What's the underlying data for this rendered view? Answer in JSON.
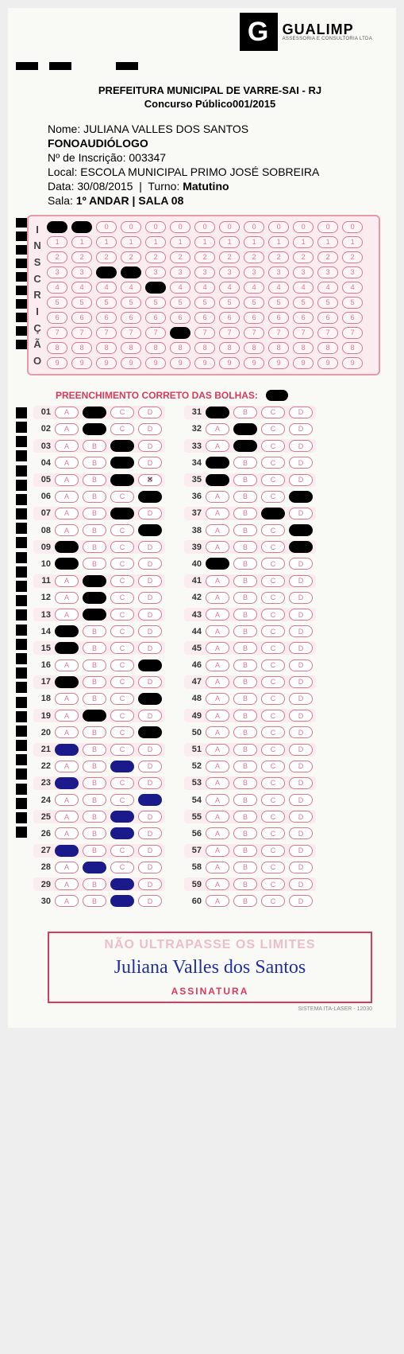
{
  "logo": {
    "brand": "GUALIMP",
    "sub": "ASSESSORIA E CONSULTORIA LTDA",
    "glyph": "G"
  },
  "header": {
    "line1": "PREFEITURA MUNICIPAL DE VARRE-SAI - RJ",
    "line2": "Concurso Público001/2015"
  },
  "candidate": {
    "nome_label": "Nome: ",
    "nome": "JULIANA VALLES DOS SANTOS",
    "cargo": "FONOAUDIÓLOGO",
    "inscricao_label": "Nº de Inscrição: ",
    "inscricao": "003347",
    "local_label": "Local: ",
    "local": "ESCOLA MUNICIPAL PRIMO JOSÉ SOBREIRA",
    "data_label": "Data: ",
    "data": "30/08/2015",
    "turno_label": "Turno: ",
    "turno": "Matutino",
    "sala_label": "Sala: ",
    "sala": "1º ANDAR | SALA 08"
  },
  "inscricao_grid": {
    "label": "INSCRIÇÃO",
    "rows": 10,
    "cols": 13,
    "digits": [
      "0",
      "1",
      "2",
      "3",
      "4",
      "5",
      "6",
      "7",
      "8",
      "9"
    ],
    "filled": [
      [
        0,
        0,
        1
      ],
      [
        0,
        1,
        1
      ],
      [
        3,
        2,
        1
      ],
      [
        3,
        3,
        1
      ],
      [
        4,
        4,
        1
      ],
      [
        7,
        5,
        1
      ]
    ]
  },
  "correct_label": "PREENCHIMENTO CORRETO DAS BOLHAS:",
  "options": [
    "A",
    "B",
    "C",
    "D"
  ],
  "answers": [
    {
      "q": 1,
      "f": [
        "B"
      ]
    },
    {
      "q": 2,
      "f": [
        "B"
      ]
    },
    {
      "q": 3,
      "f": [
        "C"
      ]
    },
    {
      "q": 4,
      "f": [
        "C"
      ]
    },
    {
      "q": 5,
      "f": [
        "C"
      ],
      "x": [
        "D"
      ]
    },
    {
      "q": 6,
      "f": [
        "D"
      ]
    },
    {
      "q": 7,
      "f": [
        "C"
      ]
    },
    {
      "q": 8,
      "f": [
        "D"
      ]
    },
    {
      "q": 9,
      "f": [
        "A"
      ]
    },
    {
      "q": 10,
      "f": [
        "A"
      ]
    },
    {
      "q": 11,
      "f": [
        "B"
      ]
    },
    {
      "q": 12,
      "f": [
        "B"
      ]
    },
    {
      "q": 13,
      "f": [
        "B"
      ]
    },
    {
      "q": 14,
      "f": [
        "A"
      ]
    },
    {
      "q": 15,
      "f": [
        "A"
      ]
    },
    {
      "q": 16,
      "f": [
        "D"
      ]
    },
    {
      "q": 17,
      "f": [
        "A"
      ]
    },
    {
      "q": 18,
      "f": [
        "D"
      ]
    },
    {
      "q": 19,
      "f": [
        "B"
      ]
    },
    {
      "q": 20,
      "f": [
        "D"
      ]
    },
    {
      "q": 21,
      "f": [
        "A"
      ]
    },
    {
      "q": 22,
      "f": [
        "C"
      ]
    },
    {
      "q": 23,
      "f": [
        "A"
      ]
    },
    {
      "q": 24,
      "f": [
        "D"
      ]
    },
    {
      "q": 25,
      "f": [
        "C"
      ]
    },
    {
      "q": 26,
      "f": [
        "C"
      ]
    },
    {
      "q": 27,
      "f": [
        "A"
      ]
    },
    {
      "q": 28,
      "f": [
        "B"
      ]
    },
    {
      "q": 29,
      "f": [
        "C"
      ]
    },
    {
      "q": 30,
      "f": [
        "C"
      ]
    },
    {
      "q": 31,
      "f": [
        "A"
      ]
    },
    {
      "q": 32,
      "f": [
        "B"
      ]
    },
    {
      "q": 33,
      "f": [
        "B"
      ]
    },
    {
      "q": 34,
      "f": [
        "A"
      ]
    },
    {
      "q": 35,
      "f": [
        "A"
      ]
    },
    {
      "q": 36,
      "f": [
        "D"
      ]
    },
    {
      "q": 37,
      "f": [
        "C"
      ]
    },
    {
      "q": 38,
      "f": [
        "D"
      ]
    },
    {
      "q": 39,
      "f": [
        "D"
      ]
    },
    {
      "q": 40,
      "f": [
        "A"
      ]
    },
    {
      "q": 41,
      "f": []
    },
    {
      "q": 42,
      "f": []
    },
    {
      "q": 43,
      "f": []
    },
    {
      "q": 44,
      "f": []
    },
    {
      "q": 45,
      "f": []
    },
    {
      "q": 46,
      "f": []
    },
    {
      "q": 47,
      "f": []
    },
    {
      "q": 48,
      "f": []
    },
    {
      "q": 49,
      "f": []
    },
    {
      "q": 50,
      "f": []
    },
    {
      "q": 51,
      "f": []
    },
    {
      "q": 52,
      "f": []
    },
    {
      "q": 53,
      "f": []
    },
    {
      "q": 54,
      "f": []
    },
    {
      "q": 55,
      "f": []
    },
    {
      "q": 56,
      "f": []
    },
    {
      "q": 57,
      "f": []
    },
    {
      "q": 58,
      "f": []
    },
    {
      "q": 59,
      "f": []
    },
    {
      "q": 60,
      "f": []
    }
  ],
  "signature": {
    "warn": "NÃO ULTRAPASSE OS LIMITES",
    "name": "Juliana Valles dos Santos",
    "label": "ASSINATURA"
  },
  "footer": "SISTEMA ITA-LASER - 12030",
  "colors": {
    "pink_border": "#e59aa8",
    "pink_bg": "#fbecef",
    "bubble_border": "#d67a90",
    "red_text": "#d63b5b",
    "blue_ink": "#2030a0"
  }
}
